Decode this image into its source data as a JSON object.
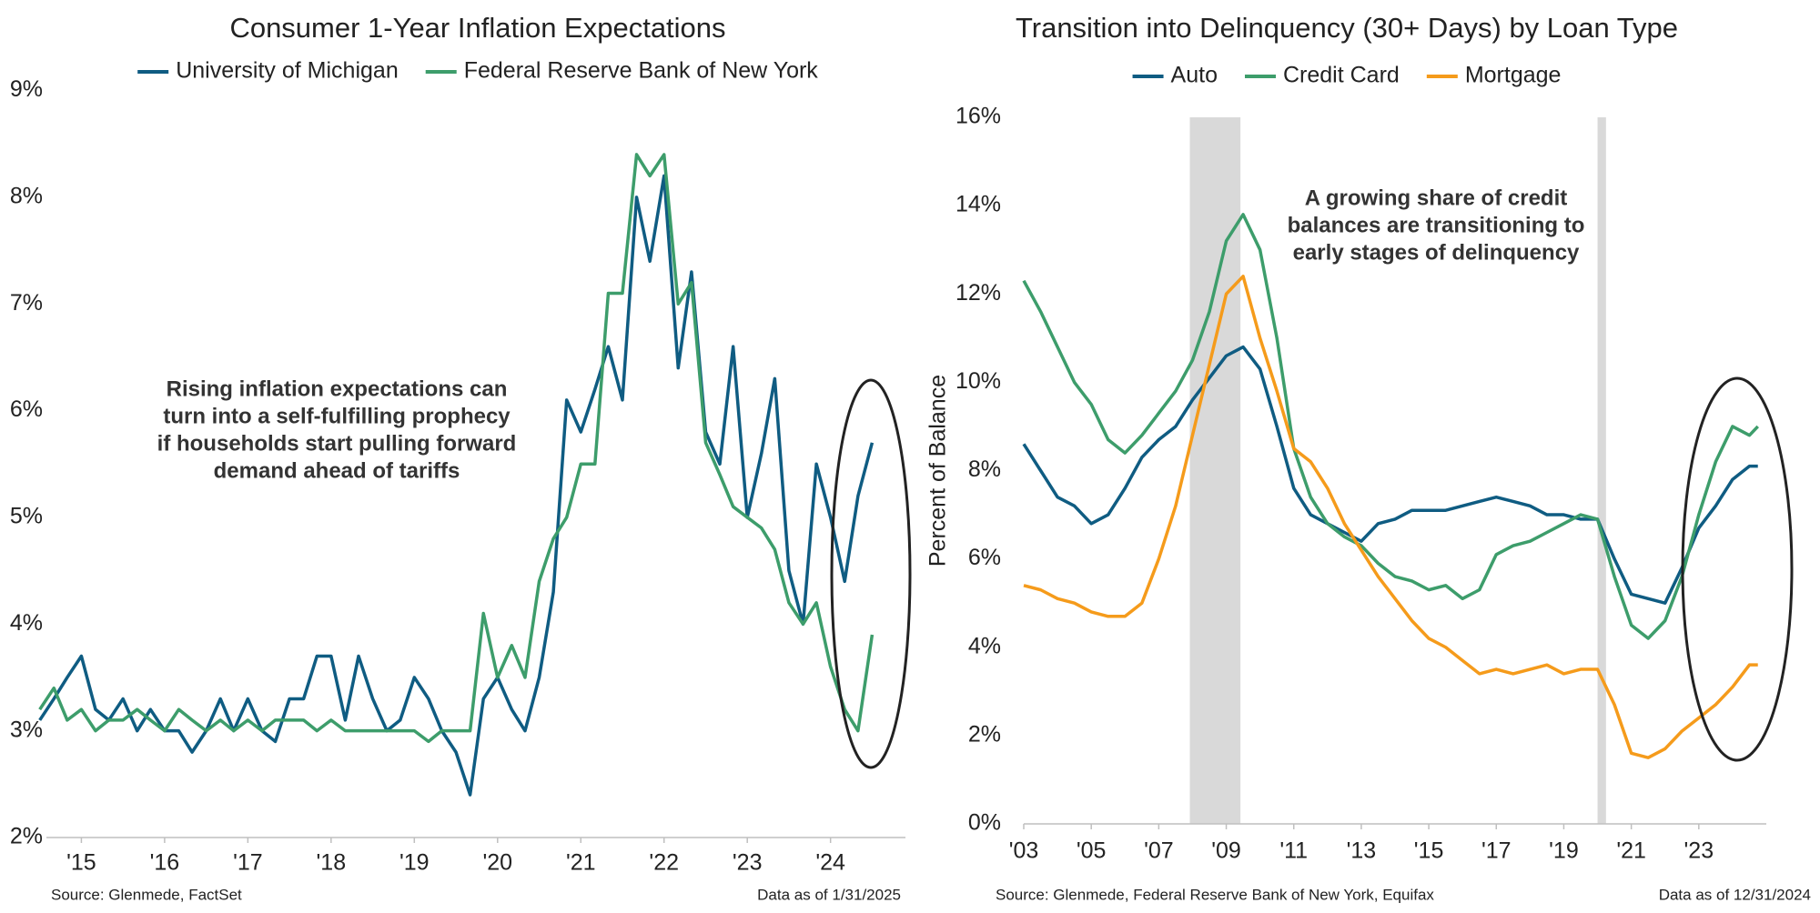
{
  "chart_data": [
    {
      "type": "line",
      "title": "Consumer 1-Year Inflation Expectations",
      "x": [
        2015.0,
        2015.17,
        2015.33,
        2015.5,
        2015.67,
        2015.83,
        2016.0,
        2016.17,
        2016.33,
        2016.5,
        2016.67,
        2016.83,
        2017.0,
        2017.17,
        2017.33,
        2017.5,
        2017.67,
        2017.83,
        2018.0,
        2018.17,
        2018.33,
        2018.5,
        2018.67,
        2018.83,
        2019.0,
        2019.17,
        2019.33,
        2019.5,
        2019.67,
        2019.83,
        2020.0,
        2020.17,
        2020.33,
        2020.5,
        2020.67,
        2020.83,
        2021.0,
        2021.17,
        2021.33,
        2021.5,
        2021.67,
        2021.83,
        2022.0,
        2022.17,
        2022.33,
        2022.5,
        2022.67,
        2022.83,
        2023.0,
        2023.17,
        2023.33,
        2023.5,
        2023.67,
        2023.83,
        2024.0,
        2024.17,
        2024.33,
        2024.5,
        2024.67,
        2024.83,
        2025.0
      ],
      "series": [
        {
          "name": "University of Michigan",
          "color": "#0f5c82",
          "values": [
            3.1,
            3.3,
            3.5,
            3.7,
            3.2,
            3.1,
            3.3,
            3.0,
            3.2,
            3.0,
            3.0,
            2.8,
            3.0,
            3.3,
            3.0,
            3.3,
            3.0,
            2.9,
            3.3,
            3.3,
            3.7,
            3.7,
            3.1,
            3.7,
            3.3,
            3.0,
            3.1,
            3.5,
            3.3,
            3.0,
            2.8,
            2.4,
            3.3,
            3.5,
            3.2,
            3.0,
            3.5,
            4.3,
            6.1,
            5.8,
            6.2,
            6.6,
            6.1,
            8.0,
            7.4,
            8.2,
            6.4,
            7.3,
            5.8,
            5.5,
            6.6,
            5.0,
            5.6,
            6.3,
            4.5,
            4.0,
            5.5,
            5.0,
            4.4,
            5.2,
            5.7
          ]
        },
        {
          "name": "Federal Reserve Bank of New York",
          "color": "#3d9d6b",
          "values": [
            3.2,
            3.4,
            3.1,
            3.2,
            3.0,
            3.1,
            3.1,
            3.2,
            3.1,
            3.0,
            3.2,
            3.1,
            3.0,
            3.1,
            3.0,
            3.1,
            3.0,
            3.1,
            3.1,
            3.1,
            3.0,
            3.1,
            3.0,
            3.0,
            3.0,
            3.0,
            3.0,
            3.0,
            2.9,
            3.0,
            3.0,
            3.0,
            4.1,
            3.5,
            3.8,
            3.5,
            4.4,
            4.8,
            5.0,
            5.5,
            5.5,
            7.1,
            7.1,
            8.4,
            8.2,
            8.4,
            7.0,
            7.2,
            5.7,
            5.4,
            5.1,
            5.0,
            4.9,
            4.7,
            4.2,
            4.0,
            4.2,
            3.6,
            3.2,
            3.0,
            3.9
          ]
        }
      ],
      "xlim": [
        2015.08,
        2025.4
      ],
      "xticks": [
        {
          "value": 2015.5,
          "label": "'15"
        },
        {
          "value": 2016.5,
          "label": "'16"
        },
        {
          "value": 2017.5,
          "label": "'17"
        },
        {
          "value": 2018.5,
          "label": "'18"
        },
        {
          "value": 2019.5,
          "label": "'19"
        },
        {
          "value": 2020.5,
          "label": "'20"
        },
        {
          "value": 2021.5,
          "label": "'21"
        },
        {
          "value": 2022.5,
          "label": "'22"
        },
        {
          "value": 2023.5,
          "label": "'23"
        },
        {
          "value": 2024.5,
          "label": "'24"
        }
      ],
      "ylim": [
        2,
        9
      ],
      "yticks": [
        {
          "value": 2,
          "label": "2%"
        },
        {
          "value": 3,
          "label": "3%"
        },
        {
          "value": 4,
          "label": "4%"
        },
        {
          "value": 5,
          "label": "5%"
        },
        {
          "value": 6,
          "label": "6%"
        },
        {
          "value": 7,
          "label": "7%"
        },
        {
          "value": 8,
          "label": "8%"
        },
        {
          "value": 9,
          "label": "9%"
        }
      ],
      "annotation": [
        "Rising inflation expectations can",
        "turn into a self-fulfilling prophecy",
        "if households start pulling forward",
        "demand ahead of tariffs"
      ],
      "source": "Source: Glenmede, FactSet",
      "as_of": "Data as of 1/31/2025"
    },
    {
      "type": "line",
      "title": "Transition into Delinquency (30+ Days) by Loan Type",
      "y_label": "Percent of Balance",
      "x": [
        2003.0,
        2003.5,
        2004.0,
        2004.5,
        2005.0,
        2005.5,
        2006.0,
        2006.5,
        2007.0,
        2007.5,
        2008.0,
        2008.5,
        2009.0,
        2009.5,
        2010.0,
        2010.5,
        2011.0,
        2011.5,
        2012.0,
        2012.5,
        2013.0,
        2013.5,
        2014.0,
        2014.5,
        2015.0,
        2015.5,
        2016.0,
        2016.5,
        2017.0,
        2017.5,
        2018.0,
        2018.5,
        2019.0,
        2019.5,
        2020.0,
        2020.5,
        2021.0,
        2021.5,
        2022.0,
        2022.5,
        2023.0,
        2023.5,
        2024.0,
        2024.5,
        2024.75
      ],
      "series": [
        {
          "name": "Auto",
          "color": "#0f5c82",
          "values": [
            8.6,
            8.0,
            7.4,
            7.2,
            6.8,
            7.0,
            7.6,
            8.3,
            8.7,
            9.0,
            9.6,
            10.1,
            10.6,
            10.8,
            10.3,
            9.0,
            7.6,
            7.0,
            6.8,
            6.6,
            6.4,
            6.8,
            6.9,
            7.1,
            7.1,
            7.1,
            7.2,
            7.3,
            7.4,
            7.3,
            7.2,
            7.0,
            7.0,
            6.9,
            6.9,
            6.0,
            5.2,
            5.1,
            5.0,
            5.8,
            6.7,
            7.2,
            7.8,
            8.1,
            8.1
          ]
        },
        {
          "name": "Credit Card",
          "color": "#3d9d6b",
          "values": [
            12.3,
            11.6,
            10.8,
            10.0,
            9.5,
            8.7,
            8.4,
            8.8,
            9.3,
            9.8,
            10.5,
            11.6,
            13.2,
            13.8,
            13.0,
            11.0,
            8.5,
            7.4,
            6.8,
            6.5,
            6.3,
            5.9,
            5.6,
            5.5,
            5.3,
            5.4,
            5.1,
            5.3,
            6.1,
            6.3,
            6.4,
            6.6,
            6.8,
            7.0,
            6.9,
            5.6,
            4.5,
            4.2,
            4.6,
            5.6,
            7.0,
            8.2,
            9.0,
            8.8,
            9.0
          ]
        },
        {
          "name": "Mortgage",
          "color": "#f59b1b",
          "values": [
            5.4,
            5.3,
            5.1,
            5.0,
            4.8,
            4.7,
            4.7,
            5.0,
            6.0,
            7.2,
            8.8,
            10.4,
            12.0,
            12.4,
            11.0,
            9.8,
            8.5,
            8.2,
            7.6,
            6.8,
            6.2,
            5.6,
            5.1,
            4.6,
            4.2,
            4.0,
            3.7,
            3.4,
            3.5,
            3.4,
            3.5,
            3.6,
            3.4,
            3.5,
            3.5,
            2.7,
            1.6,
            1.5,
            1.7,
            2.1,
            2.4,
            2.7,
            3.1,
            3.6,
            3.6
          ]
        }
      ],
      "shaded_periods": [
        [
          2007.92,
          2009.42
        ],
        [
          2020.0,
          2020.25
        ]
      ],
      "xlim": [
        2003,
        2025
      ],
      "xticks": [
        {
          "value": 2003,
          "label": "'03"
        },
        {
          "value": 2005,
          "label": "'05"
        },
        {
          "value": 2007,
          "label": "'07"
        },
        {
          "value": 2009,
          "label": "'09"
        },
        {
          "value": 2011,
          "label": "'11"
        },
        {
          "value": 2013,
          "label": "'13"
        },
        {
          "value": 2015,
          "label": "'15"
        },
        {
          "value": 2017,
          "label": "'17"
        },
        {
          "value": 2019,
          "label": "'19"
        },
        {
          "value": 2021,
          "label": "'21"
        },
        {
          "value": 2023,
          "label": "'23"
        }
      ],
      "ylim": [
        0,
        16
      ],
      "yticks": [
        {
          "value": 0,
          "label": "0%"
        },
        {
          "value": 2,
          "label": "2%"
        },
        {
          "value": 4,
          "label": "4%"
        },
        {
          "value": 6,
          "label": "6%"
        },
        {
          "value": 8,
          "label": "8%"
        },
        {
          "value": 10,
          "label": "10%"
        },
        {
          "value": 12,
          "label": "12%"
        },
        {
          "value": 14,
          "label": "14%"
        },
        {
          "value": 16,
          "label": "16%"
        }
      ],
      "annotation": [
        "A growing share of credit",
        "balances are transitioning to",
        "early stages of delinquency"
      ],
      "source": "Source: Glenmede, Federal Reserve Bank of New York, Equifax",
      "as_of": "Data as of 12/31/2024"
    }
  ]
}
